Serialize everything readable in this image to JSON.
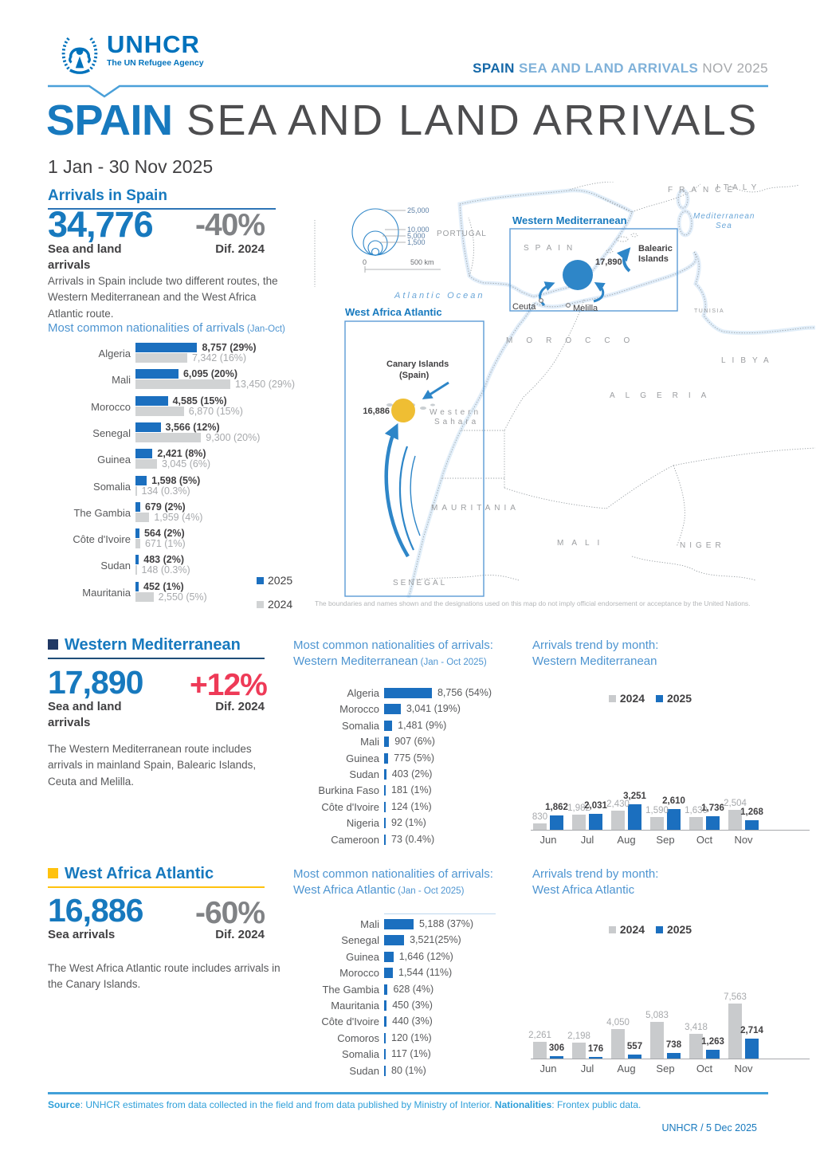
{
  "header": {
    "logo_name": "UNHCR",
    "logo_tagline": "The UN Refugee Agency",
    "doc_title_strong": "SPAIN",
    "doc_title_rest": " SEA AND LAND ARRIVALS ",
    "doc_title_date": "NOV 2025"
  },
  "title": {
    "strong": "SPAIN",
    "rest": " SEA AND LAND ARRIVALS",
    "period": "1 Jan - 30 Nov 2025"
  },
  "arrivals_spain": {
    "heading": "Arrivals in Spain",
    "total": "34,776",
    "total_label": "Sea and land arrivals",
    "diff": "-40%",
    "diff_label": "Dif. 2024",
    "description": "Arrivals in Spain include two different routes, the Western Mediterranean and the West Africa Atlantic route.",
    "chart_title": "Most common nationalities of arrivals",
    "chart_title_note": " (Jan-Oct)"
  },
  "western_mediterranean": {
    "heading": "Western Mediterranean",
    "total": "17,890",
    "total_label": "Sea and land arrivals",
    "diff": "+12%",
    "diff_label": "Dif. 2024",
    "description": "The Western Mediterranean route includes arrivals in mainland Spain, Balearic Islands, Ceuta and Melilla.",
    "nat_title_1": "Most common nationalities of arrivals:",
    "nat_title_2": "Western Mediterranean",
    "nat_title_note": " (Jan - Oct 2025)",
    "trend_title_1": "Arrivals trend by month:",
    "trend_title_2": "Western Mediterranean"
  },
  "west_africa_atlantic": {
    "heading": "West Africa Atlantic",
    "total": "16,886",
    "total_label": "Sea arrivals",
    "diff": "-60%",
    "diff_label": "Dif. 2024",
    "description": "The West Africa Atlantic route includes arrivals in the Canary Islands.",
    "nat_title_1": "Most common nationalities of arrivals:",
    "nat_title_2": "West Africa Atlantic",
    "nat_title_note": " (Jan - Oct 2025)",
    "trend_title_1": "Arrivals trend by month:",
    "trend_title_2": "West Africa Atlantic"
  },
  "legend": {
    "y2025": "2025",
    "y2024": "2024"
  },
  "map": {
    "region_wm_label": "Western Mediterranean",
    "region_wm_value": "17,890",
    "region_waa_label": "West Africa Atlantic",
    "region_waa_value": "16,886",
    "legend_circles": [
      "25,000",
      "10,000",
      "5,000",
      "1,500"
    ],
    "scale_zero": "0",
    "scale_label": "500 km",
    "sea_atlantic": "Atlantic Ocean",
    "sea_med_1": "Mediterranean",
    "sea_med_2": "Sea",
    "labels": {
      "spain": "SPAIN",
      "portugal": "PORTUGAL",
      "france": "FRANCE",
      "italy": "ITALY",
      "morocco": "MOROCCO",
      "algeria": "ALGERIA",
      "libya": "LIBYA",
      "tunisia": "TUNISIA",
      "mauritania": "MAURITANIA",
      "mali": "MALI",
      "niger": "NIGER",
      "senegal": "SENEGAL",
      "western_sahara_1": "Western",
      "western_sahara_2": "Sahara",
      "canary_1": "Canary Islands",
      "canary_2": "(Spain)",
      "balearic_1": "Balearic",
      "balearic_2": "Islands",
      "ceuta": "Ceuta",
      "melilla": "Melilla"
    },
    "disclaimer": "The boundaries and names shown and the designations used on this map do not imply official endorsement or acceptance by the United Nations."
  },
  "footer": {
    "source_bold": "Source",
    "source_text": ": UNHCR estimates from data collected in the field and from data published by Ministry of Interior. ",
    "nationalities_bold": "Nationalities",
    "nationalities_text": ": Frontex public data.",
    "credit": "UNHCR / 5 Dec 2025"
  },
  "chart_data": [
    {
      "id": "spain_nationalities",
      "type": "bar",
      "orientation": "horizontal",
      "title": "Most common nationalities of arrivals (Jan-Oct)",
      "categories": [
        "Algeria",
        "Mali",
        "Morocco",
        "Senegal",
        "Guinea",
        "Somalia",
        "The Gambia",
        "Côte d'Ivoire",
        "Sudan",
        "Mauritania"
      ],
      "series": [
        {
          "name": "2025",
          "color": "#1b6fbf",
          "values": [
            8757,
            6095,
            4585,
            3566,
            2421,
            1598,
            679,
            564,
            483,
            452
          ],
          "labels": [
            "8,757 (29%)",
            "6,095 (20%)",
            "4,585 (15%)",
            "3,566 (12%)",
            "2,421 (8%)",
            "1,598 (5%)",
            "679 (2%)",
            "564 (2%)",
            "483 (2%)",
            "452 (1%)"
          ]
        },
        {
          "name": "2024",
          "color": "#d1d3d4",
          "values": [
            7342,
            13450,
            6870,
            9300,
            3045,
            134,
            1959,
            671,
            148,
            2550
          ],
          "labels": [
            "7,342 (16%)",
            "13,450 (29%)",
            "6,870 (15%)",
            "9,300 (20%)",
            "3,045 (6%)",
            "134 (0.3%)",
            "1,959 (4%)",
            "671 (1%)",
            "148 (0.3%)",
            "2,550 (5%)"
          ]
        }
      ],
      "legend": [
        "2025",
        "2024"
      ]
    },
    {
      "id": "wm_nationalities",
      "type": "bar",
      "orientation": "horizontal",
      "title": "Most common nationalities of arrivals: Western Mediterranean (Jan - Oct 2025)",
      "categories": [
        "Algeria",
        "Morocco",
        "Somalia",
        "Mali",
        "Guinea",
        "Sudan",
        "Burkina Faso",
        "Côte d'Ivoire",
        "Nigeria",
        "Cameroon"
      ],
      "values": [
        8756,
        3041,
        1481,
        907,
        775,
        403,
        181,
        124,
        92,
        73
      ],
      "labels": [
        "8,756 (54%)",
        "3,041 (19%)",
        "1,481 (9%)",
        "907 (6%)",
        "775 (5%)",
        "403 (2%)",
        "181 (1%)",
        "124 (1%)",
        "92 (1%)",
        "73 (0.4%)"
      ]
    },
    {
      "id": "waa_nationalities",
      "type": "bar",
      "orientation": "horizontal",
      "title": "Most common nationalities of arrivals: West Africa Atlantic (Jan - Oct 2025)",
      "categories": [
        "Mali",
        "Senegal",
        "Guinea",
        "Morocco",
        "The Gambia",
        "Mauritania",
        "Côte d'Ivoire",
        "Comoros",
        "Somalia",
        "Sudan"
      ],
      "values": [
        5188,
        3521,
        1646,
        1544,
        628,
        450,
        440,
        120,
        117,
        80
      ],
      "labels": [
        "5,188 (37%)",
        "3,521(25%)",
        "1,646 (12%)",
        "1,544 (11%)",
        "628 (4%)",
        "450 (3%)",
        "440 (3%)",
        "120 (1%)",
        "117 (1%)",
        "80 (1%)"
      ]
    },
    {
      "id": "wm_trend",
      "type": "bar",
      "orientation": "vertical",
      "title": "Arrivals trend by month: Western Mediterranean",
      "categories": [
        "Jun",
        "Jul",
        "Aug",
        "Sep",
        "Oct",
        "Nov"
      ],
      "series": [
        {
          "name": "2024",
          "color": "#c9cbcd",
          "values": [
            830,
            1982,
            2430,
            1590,
            1630,
            2504
          ],
          "labels": [
            "830",
            "1,982",
            "2,430",
            "1,590",
            "1,630",
            "2,504"
          ]
        },
        {
          "name": "2025",
          "color": "#1b6fbf",
          "values": [
            1862,
            2031,
            3251,
            2610,
            1736,
            1268
          ],
          "labels": [
            "1,862",
            "2,031",
            "3,251",
            "2,610",
            "1,736",
            "1,268"
          ]
        }
      ],
      "legend": [
        "2024",
        "2025"
      ]
    },
    {
      "id": "waa_trend",
      "type": "bar",
      "orientation": "vertical",
      "title": "Arrivals trend by month: West Africa Atlantic",
      "categories": [
        "Jun",
        "Jul",
        "Aug",
        "Sep",
        "Oct",
        "Nov"
      ],
      "series": [
        {
          "name": "2024",
          "color": "#c9cbcd",
          "values": [
            2261,
            2198,
            4050,
            5083,
            3418,
            7563
          ],
          "labels": [
            "2,261",
            "2,198",
            "4,050",
            "5,083",
            "3,418",
            "7,563"
          ]
        },
        {
          "name": "2025",
          "color": "#1b6fbf",
          "values": [
            306,
            176,
            557,
            738,
            1263,
            2714
          ],
          "labels": [
            "306",
            "176",
            "557",
            "738",
            "1,263",
            "2,714"
          ]
        }
      ],
      "legend": [
        "2024",
        "2025"
      ]
    }
  ]
}
